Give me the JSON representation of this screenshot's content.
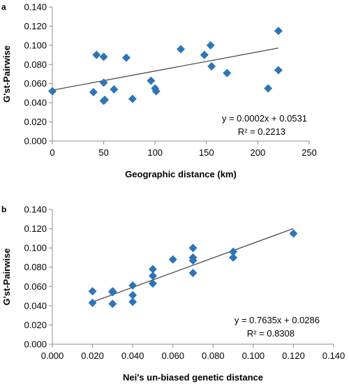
{
  "chart_data": [
    {
      "type": "scatter",
      "panel_label": "a",
      "xlabel": "Geographic distance (km)",
      "ylabel": "G'st-Pairwise",
      "xlim": [
        0,
        250
      ],
      "ylim": [
        0,
        0.14
      ],
      "x_ticks": [
        "0",
        "50",
        "100",
        "150",
        "200",
        "250"
      ],
      "y_ticks": [
        "0.000",
        "0.020",
        "0.040",
        "0.060",
        "0.080",
        "0.100",
        "0.120",
        "0.140"
      ],
      "x_tick_values": [
        0,
        50,
        100,
        150,
        200,
        250
      ],
      "y_tick_values": [
        0,
        0.02,
        0.04,
        0.06,
        0.08,
        0.1,
        0.12,
        0.14
      ],
      "marker_color": "#2e75b6",
      "trendline": {
        "slope": 0.0002,
        "intercept": 0.0531,
        "x_range": [
          0,
          220
        ]
      },
      "equation": "y = 0.0002x + 0.0531",
      "r_squared": "R² = 0.2213",
      "points": [
        {
          "x": 0,
          "y": 0.052
        },
        {
          "x": 40,
          "y": 0.051
        },
        {
          "x": 43,
          "y": 0.09
        },
        {
          "x": 50,
          "y": 0.088
        },
        {
          "x": 50,
          "y": 0.061
        },
        {
          "x": 50,
          "y": 0.042
        },
        {
          "x": 51,
          "y": 0.043
        },
        {
          "x": 60,
          "y": 0.054
        },
        {
          "x": 72,
          "y": 0.087
        },
        {
          "x": 78,
          "y": 0.044
        },
        {
          "x": 96,
          "y": 0.063
        },
        {
          "x": 100,
          "y": 0.055
        },
        {
          "x": 101,
          "y": 0.052
        },
        {
          "x": 125,
          "y": 0.096
        },
        {
          "x": 148,
          "y": 0.09
        },
        {
          "x": 154,
          "y": 0.1
        },
        {
          "x": 155,
          "y": 0.078
        },
        {
          "x": 170,
          "y": 0.071
        },
        {
          "x": 210,
          "y": 0.055
        },
        {
          "x": 220,
          "y": 0.115
        },
        {
          "x": 220,
          "y": 0.074
        }
      ]
    },
    {
      "type": "scatter",
      "panel_label": "b",
      "xlabel": "Nei's un-biased genetic distance",
      "ylabel": "G'st-Pairwise",
      "xlim": [
        0,
        0.14
      ],
      "ylim": [
        0,
        0.14
      ],
      "x_ticks": [
        "0.000",
        "0.020",
        "0.040",
        "0.060",
        "0.080",
        "0.100",
        "0.120",
        "0.140"
      ],
      "y_ticks": [
        "0.000",
        "0.020",
        "0.040",
        "0.060",
        "0.080",
        "0.100",
        "0.120",
        "0.140"
      ],
      "x_tick_values": [
        0,
        0.02,
        0.04,
        0.06,
        0.08,
        0.1,
        0.12,
        0.14
      ],
      "y_tick_values": [
        0,
        0.02,
        0.04,
        0.06,
        0.08,
        0.1,
        0.12,
        0.14
      ],
      "marker_color": "#2e75b6",
      "trendline": {
        "slope": 0.7635,
        "intercept": 0.0286,
        "x_range": [
          0.02,
          0.12
        ]
      },
      "equation": "y = 0.7635x + 0.0286",
      "r_squared": "R² = 0.8308",
      "points": [
        {
          "x": 0.02,
          "y": 0.055
        },
        {
          "x": 0.02,
          "y": 0.043
        },
        {
          "x": 0.03,
          "y": 0.054
        },
        {
          "x": 0.03,
          "y": 0.055
        },
        {
          "x": 0.03,
          "y": 0.042
        },
        {
          "x": 0.04,
          "y": 0.061
        },
        {
          "x": 0.04,
          "y": 0.051
        },
        {
          "x": 0.04,
          "y": 0.044
        },
        {
          "x": 0.05,
          "y": 0.078
        },
        {
          "x": 0.05,
          "y": 0.071
        },
        {
          "x": 0.05,
          "y": 0.063
        },
        {
          "x": 0.06,
          "y": 0.088
        },
        {
          "x": 0.07,
          "y": 0.1
        },
        {
          "x": 0.07,
          "y": 0.09
        },
        {
          "x": 0.07,
          "y": 0.087
        },
        {
          "x": 0.07,
          "y": 0.074
        },
        {
          "x": 0.09,
          "y": 0.096
        },
        {
          "x": 0.09,
          "y": 0.09
        },
        {
          "x": 0.12,
          "y": 0.115
        }
      ]
    }
  ]
}
